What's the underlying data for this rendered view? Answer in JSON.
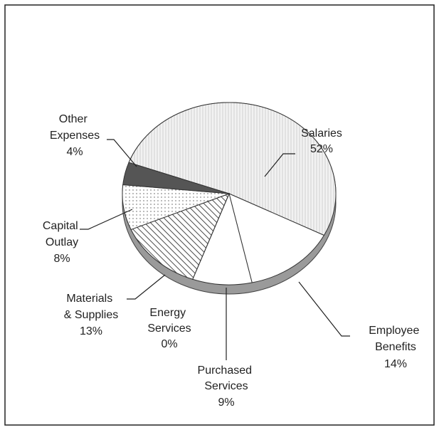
{
  "chart_data": {
    "type": "pie",
    "categories": [
      "Salaries",
      "Employee Benefits",
      "Purchased Services",
      "Energy Services",
      "Materials & Supplies",
      "Capital Outlay",
      "Other Expenses"
    ],
    "values": [
      52,
      14,
      9,
      0,
      13,
      8,
      4
    ],
    "value_labels": [
      "52%",
      "14%",
      "9%",
      "0%",
      "13%",
      "8%",
      "4%"
    ],
    "colors": [
      "#ececec",
      "#ffffff",
      "#ffffff",
      "#ffffff",
      "#ffffff",
      "#fafafa",
      "#555555"
    ]
  }
}
